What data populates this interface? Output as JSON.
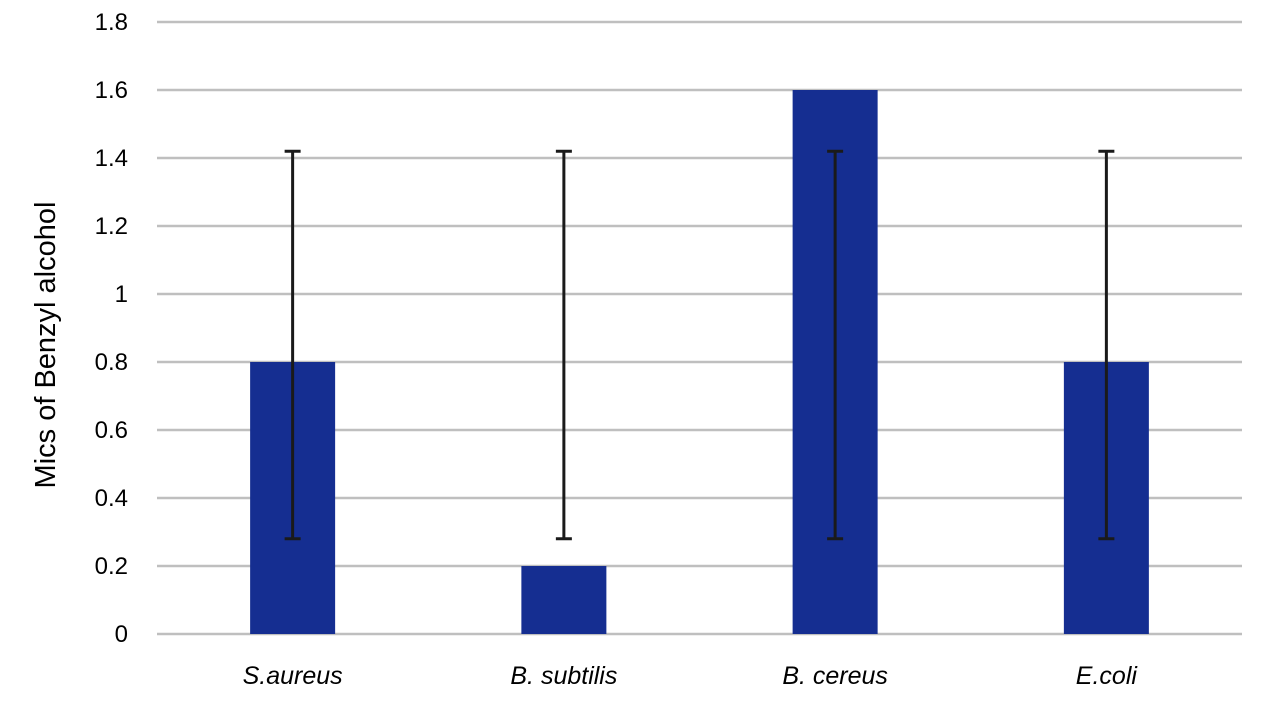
{
  "chart_data": {
    "type": "bar",
    "title": "",
    "xlabel": "",
    "ylabel": "Mics of Benzyl alcohol",
    "categories": [
      "S.aureus",
      "B. subtilis",
      "B. cereus",
      "E.coli"
    ],
    "values": [
      0.8,
      0.2,
      1.6,
      0.8
    ],
    "error_bars": [
      {
        "low": 0.28,
        "high": 1.42
      },
      {
        "low": 0.28,
        "high": 1.42
      },
      {
        "low": 0.28,
        "high": 1.42
      },
      {
        "low": 0.28,
        "high": 1.42
      }
    ],
    "ylim": [
      0,
      1.8
    ],
    "yticks": [
      "0",
      "0.2",
      "0.4",
      "0.6",
      "0.8",
      "1",
      "1.2",
      "1.4",
      "1.6",
      "1.8"
    ],
    "grid": true,
    "legend": "none",
    "colors": {
      "bar": "#152e91",
      "error_bar": "#1a1a1a",
      "grid": "#bfbfbf"
    }
  }
}
